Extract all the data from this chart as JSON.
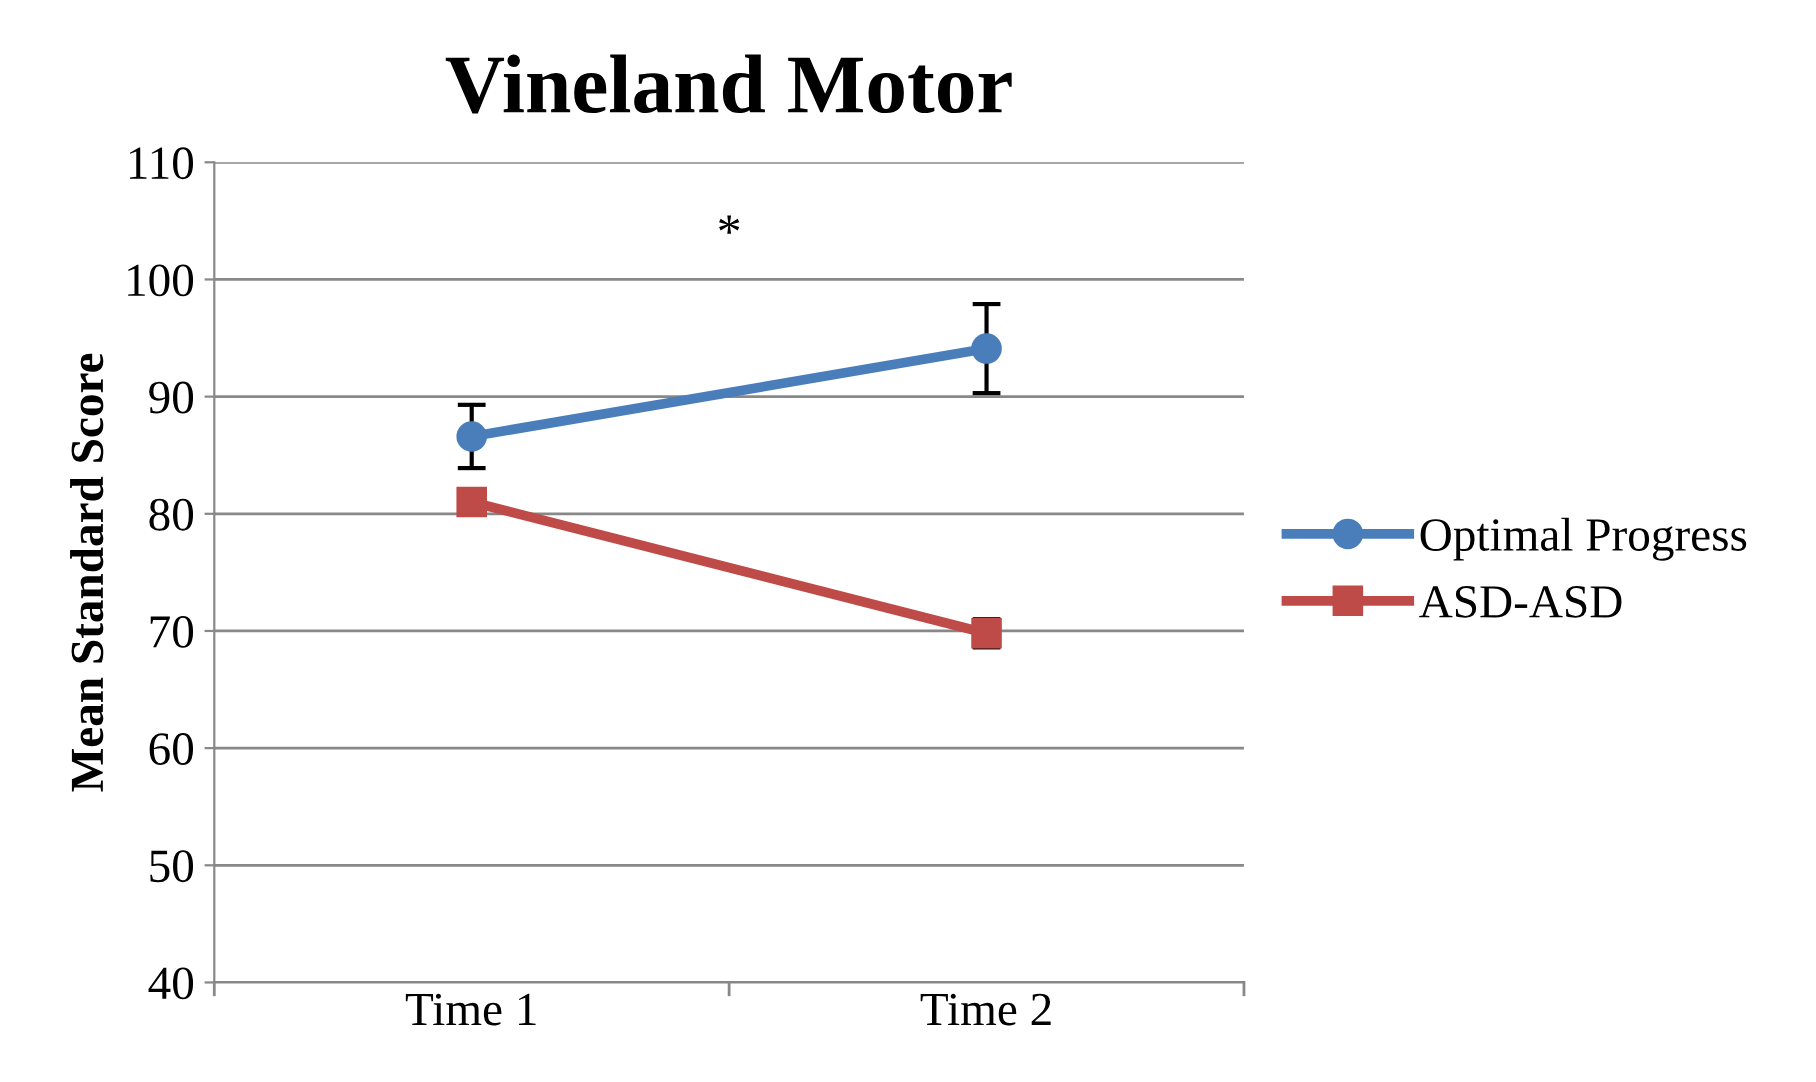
{
  "chart_data": {
    "type": "line",
    "title": "Vineland Motor",
    "ylabel": "Mean Standard Score",
    "categories": [
      "Time 1",
      "Time 2"
    ],
    "series": [
      {
        "name": "Optimal Progress",
        "color": "#4a7ebb",
        "values": [
          86.6,
          94.1
        ],
        "errors": [
          2.7,
          3.8
        ],
        "marker": "circle"
      },
      {
        "name": "ASD-ASD",
        "color": "#be4b48",
        "values": [
          81.0,
          69.8
        ],
        "errors": [
          null,
          1.2
        ],
        "marker": "square"
      }
    ],
    "annotations": [
      "*"
    ],
    "ylim": [
      40,
      110
    ],
    "yticks": [
      40,
      50,
      60,
      70,
      80,
      90,
      100,
      110
    ],
    "grid": "y",
    "legend": "right"
  }
}
